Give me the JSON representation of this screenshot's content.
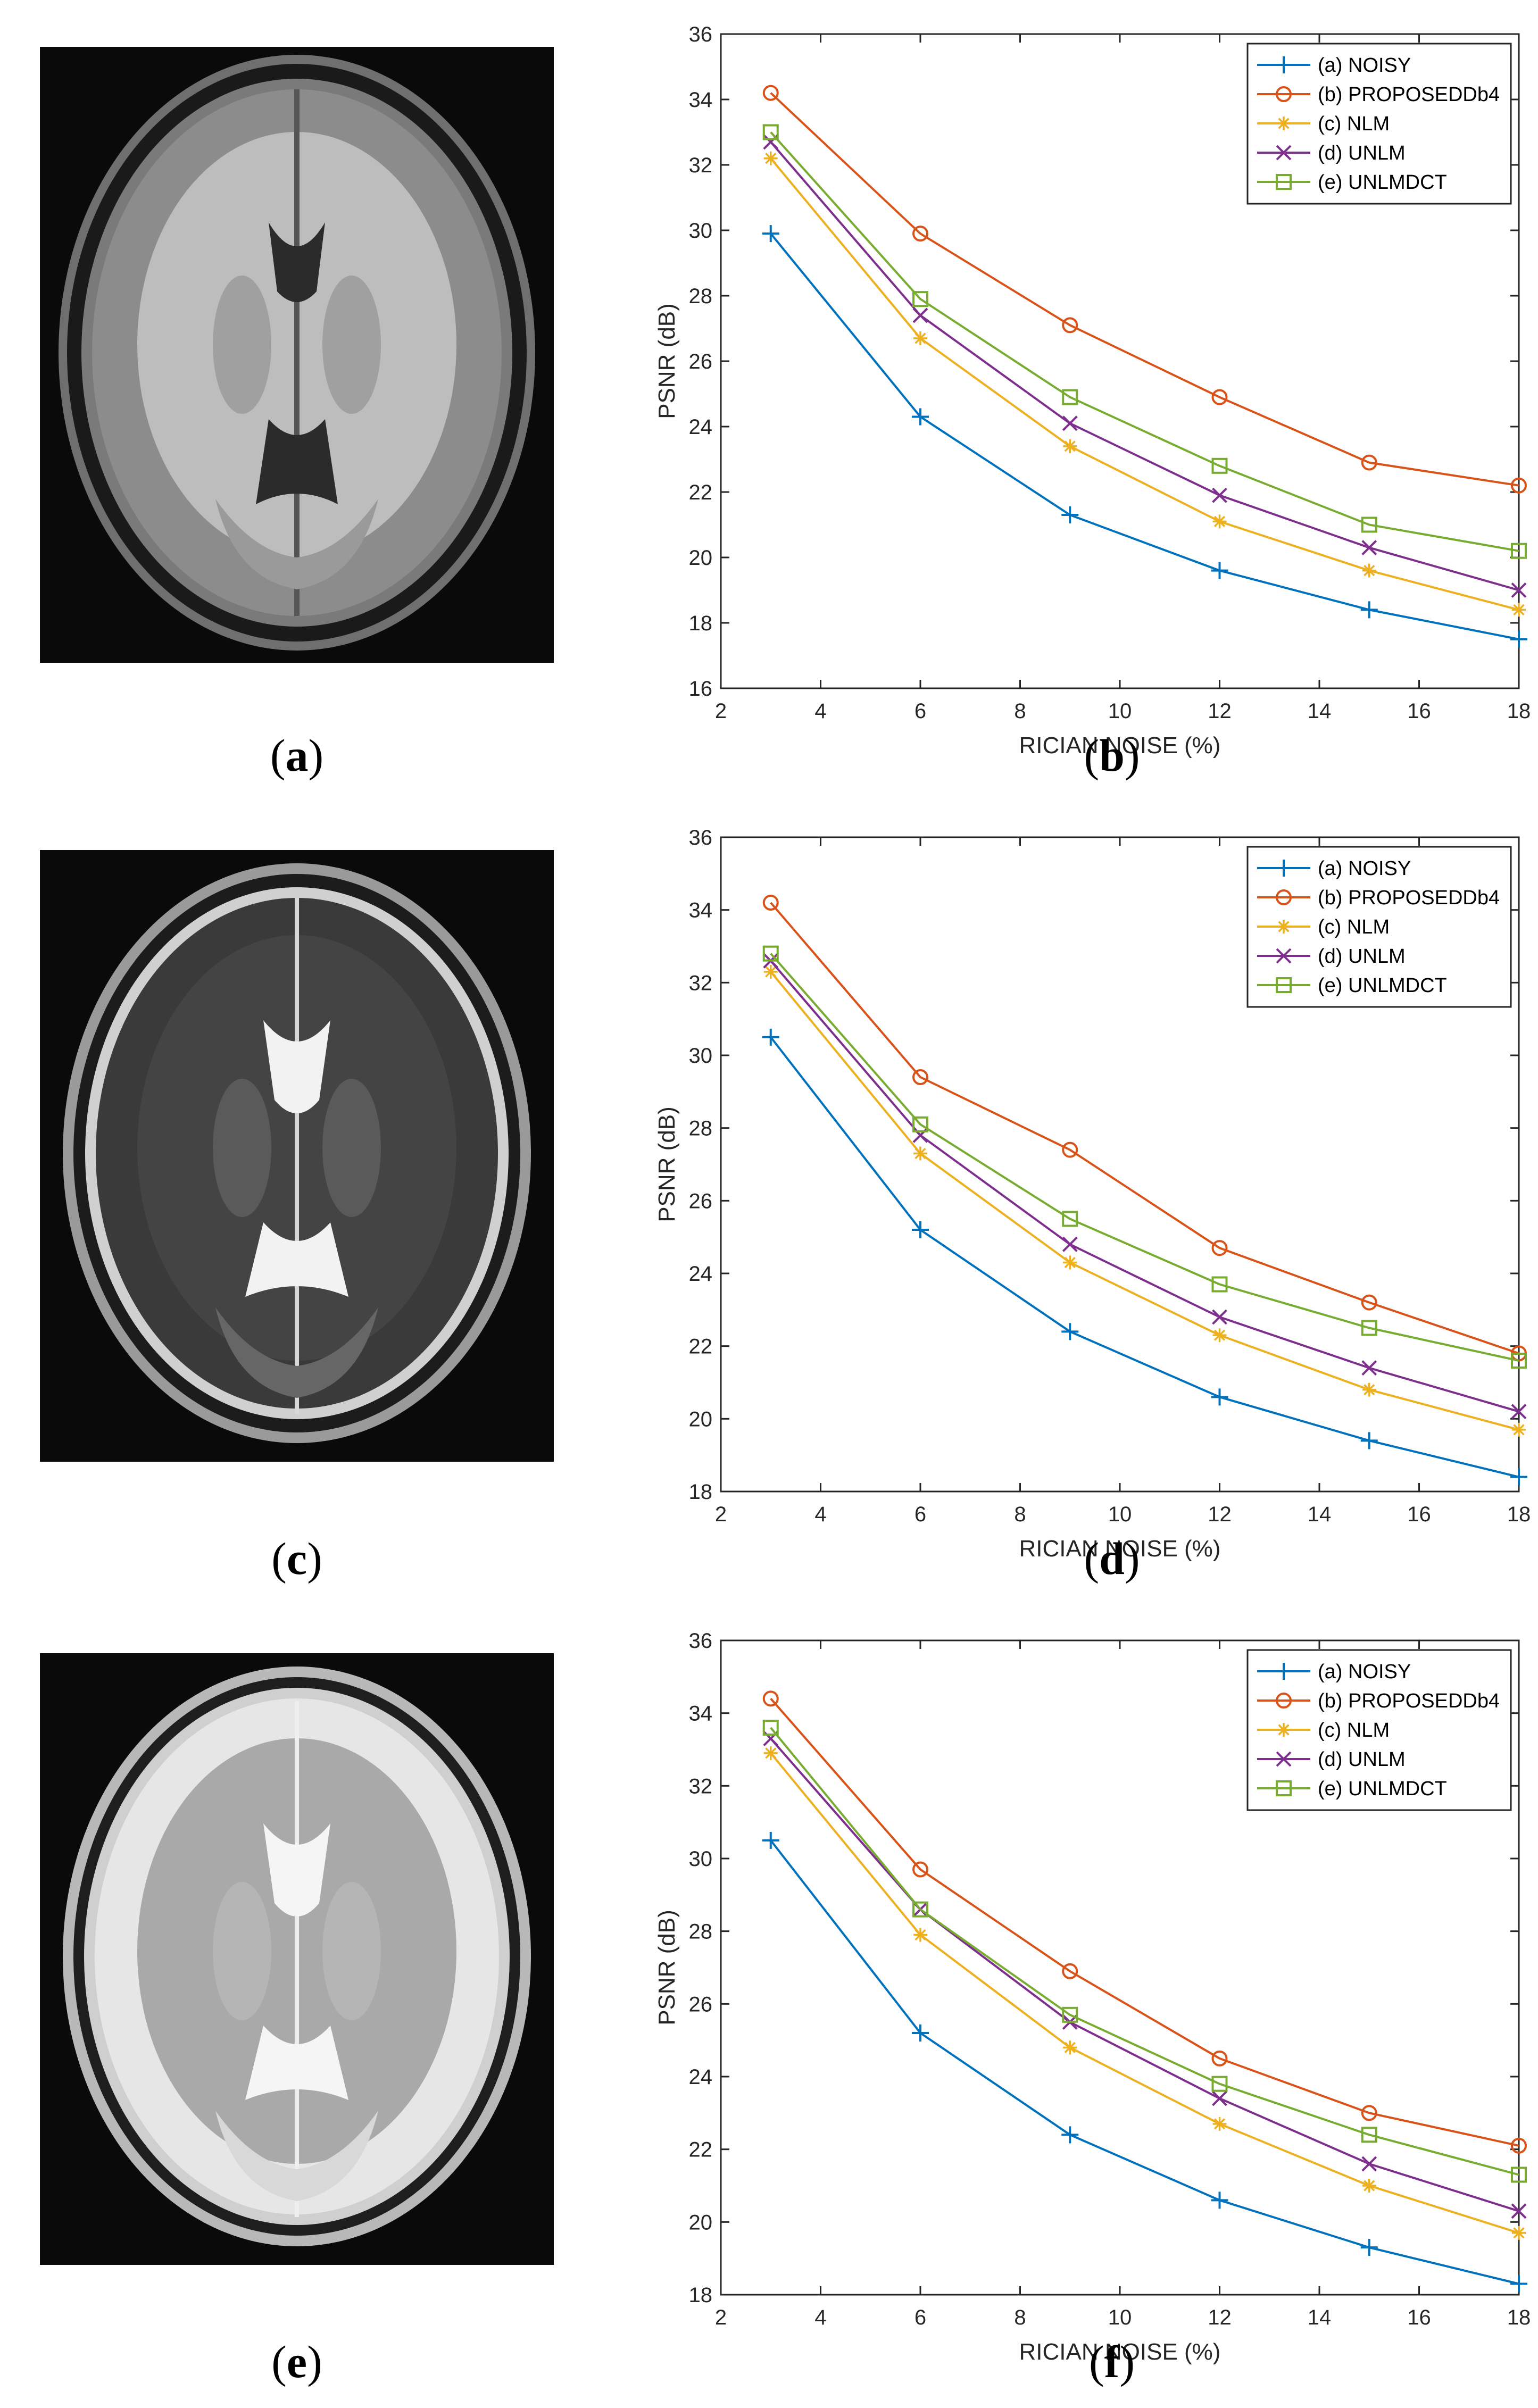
{
  "colors": {
    "noisy": "#0072BD",
    "proposed": "#D95319",
    "nlm": "#EDB120",
    "unlm": "#7E2F8E",
    "unlmdct": "#77AC30"
  },
  "panels": {
    "a": {
      "caption": "a"
    },
    "b": {
      "caption": "b"
    },
    "c": {
      "caption": "c"
    },
    "d": {
      "caption": "d"
    },
    "e": {
      "caption": "e"
    },
    "f": {
      "caption": "f"
    }
  },
  "chart_data": [
    {
      "type": "line",
      "panel": "b",
      "xlabel": "RICIAN NOISE (%)",
      "ylabel": "PSNR (dB)",
      "xlim": [
        2,
        18
      ],
      "ylim": [
        16,
        36
      ],
      "xticks": [
        2,
        4,
        6,
        8,
        10,
        12,
        14,
        16,
        18
      ],
      "yticks": [
        16,
        18,
        20,
        22,
        24,
        26,
        28,
        30,
        32,
        34,
        36
      ],
      "legend_position": "top-right",
      "x": [
        3,
        6,
        9,
        12,
        15,
        18
      ],
      "series": [
        {
          "name": "(a) NOISY",
          "key": "noisy",
          "marker": "plus",
          "values": [
            29.9,
            24.3,
            21.3,
            19.6,
            18.4,
            17.5
          ]
        },
        {
          "name": "(b) PROPOSEDDb4",
          "key": "proposed",
          "marker": "circle",
          "values": [
            34.2,
            29.9,
            27.1,
            24.9,
            22.9,
            22.2
          ]
        },
        {
          "name": "(c) NLM",
          "key": "nlm",
          "marker": "asterisk",
          "values": [
            32.2,
            26.7,
            23.4,
            21.1,
            19.6,
            18.4
          ]
        },
        {
          "name": "(d) UNLM",
          "key": "unlm",
          "marker": "cross",
          "values": [
            32.7,
            27.4,
            24.1,
            21.9,
            20.3,
            19.0
          ]
        },
        {
          "name": "(e) UNLMDCT",
          "key": "unlmdct",
          "marker": "square",
          "values": [
            33.0,
            27.9,
            24.9,
            22.8,
            21.0,
            20.2
          ]
        }
      ]
    },
    {
      "type": "line",
      "panel": "d",
      "xlabel": "RICIAN NOISE (%)",
      "ylabel": "PSNR (dB)",
      "xlim": [
        2,
        18
      ],
      "ylim": [
        18,
        36
      ],
      "xticks": [
        2,
        4,
        6,
        8,
        10,
        12,
        14,
        16,
        18
      ],
      "yticks": [
        18,
        20,
        22,
        24,
        26,
        28,
        30,
        32,
        34,
        36
      ],
      "legend_position": "top-right",
      "x": [
        3,
        6,
        9,
        12,
        15,
        18
      ],
      "series": [
        {
          "name": "(a) NOISY",
          "key": "noisy",
          "marker": "plus",
          "values": [
            30.5,
            25.2,
            22.4,
            20.6,
            19.4,
            18.4
          ]
        },
        {
          "name": "(b) PROPOSEDDb4",
          "key": "proposed",
          "marker": "circle",
          "values": [
            34.2,
            29.4,
            27.4,
            24.7,
            23.2,
            21.8
          ]
        },
        {
          "name": "(c) NLM",
          "key": "nlm",
          "marker": "asterisk",
          "values": [
            32.3,
            27.3,
            24.3,
            22.3,
            20.8,
            19.7
          ]
        },
        {
          "name": "(d) UNLM",
          "key": "unlm",
          "marker": "cross",
          "values": [
            32.6,
            27.8,
            24.8,
            22.8,
            21.4,
            20.2
          ]
        },
        {
          "name": "(e) UNLMDCT",
          "key": "unlmdct",
          "marker": "square",
          "values": [
            32.8,
            28.1,
            25.5,
            23.7,
            22.5,
            21.6
          ]
        }
      ]
    },
    {
      "type": "line",
      "panel": "f",
      "xlabel": "RICIAN NOISE (%)",
      "ylabel": "PSNR (dB)",
      "xlim": [
        2,
        18
      ],
      "ylim": [
        18,
        36
      ],
      "xticks": [
        2,
        4,
        6,
        8,
        10,
        12,
        14,
        16,
        18
      ],
      "yticks": [
        18,
        20,
        22,
        24,
        26,
        28,
        30,
        32,
        34,
        36
      ],
      "legend_position": "top-right",
      "x": [
        3,
        6,
        9,
        12,
        15,
        18
      ],
      "series": [
        {
          "name": "(a) NOISY",
          "key": "noisy",
          "marker": "plus",
          "values": [
            30.5,
            25.2,
            22.4,
            20.6,
            19.3,
            18.3
          ]
        },
        {
          "name": "(b) PROPOSEDDb4",
          "key": "proposed",
          "marker": "circle",
          "values": [
            34.4,
            29.7,
            26.9,
            24.5,
            23.0,
            22.1
          ]
        },
        {
          "name": "(c) NLM",
          "key": "nlm",
          "marker": "asterisk",
          "values": [
            32.9,
            27.9,
            24.8,
            22.7,
            21.0,
            19.7
          ]
        },
        {
          "name": "(d) UNLM",
          "key": "unlm",
          "marker": "cross",
          "values": [
            33.3,
            28.6,
            25.5,
            23.4,
            21.6,
            20.3
          ]
        },
        {
          "name": "(e) UNLMDCT",
          "key": "unlmdct",
          "marker": "square",
          "values": [
            33.6,
            28.6,
            25.7,
            23.8,
            22.4,
            21.3
          ]
        }
      ]
    }
  ]
}
